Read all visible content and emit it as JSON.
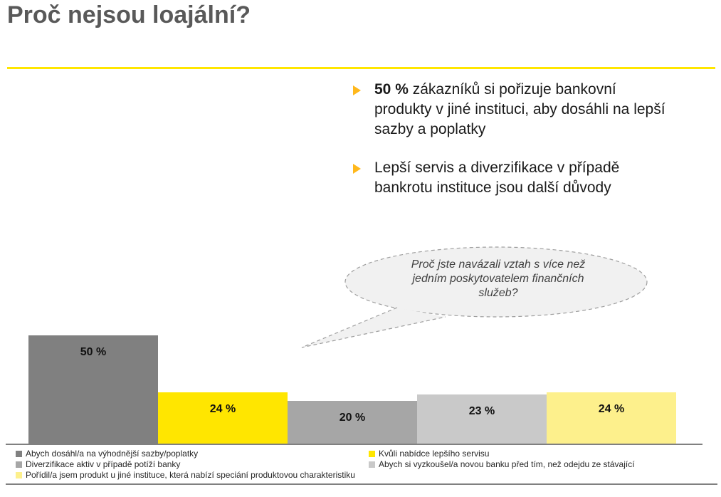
{
  "slide": {
    "title": "Proč nejsou loajální?",
    "bullets": [
      {
        "bold": "50 %",
        "text": " zákazníků si pořizuje bankovní produkty v jiné instituci, aby dosáhli na lepší sazby a poplatky"
      },
      {
        "bold": "",
        "text": "Lepší servis a diverzifikace v případě bankrotu instituce jsou další důvody"
      }
    ],
    "speech_bubble": {
      "text": "Proč jste navázali vztah s více než jedním poskytovatelem finančních služeb?",
      "lines": [
        "Proč jste navázali vztah s více než",
        "jedním poskytovatelem finančních",
        "služeb?"
      ]
    }
  },
  "chart_data": {
    "type": "bar",
    "title": "",
    "xlabel": "",
    "ylabel": "",
    "ylim": [
      0,
      55
    ],
    "grid": false,
    "legend_position": "bottom",
    "categories": [
      "Abych dosáhl/a na výhodnější sazby/poplatky",
      "Kvůli nabídce lepšího servisu",
      "Diverzifikace aktiv v případě potíží banky",
      "Abych si vyzkoušel/a novou banku před tím, než odejdu ze stávající",
      "Pořídil/a jsem produkt u jiné instituce, která nabízí speciání produktovou charakteristiku"
    ],
    "values": [
      50,
      24,
      20,
      23,
      24
    ],
    "labels": [
      "50 %",
      "24 %",
      "20 %",
      "23 %",
      "24 %"
    ],
    "colors": [
      "#808080",
      "#FFE600",
      "#A6A6A6",
      "#C9C9C9",
      "#FDF08C"
    ],
    "legend": [
      {
        "label": "Abych dosáhl/a na výhodnější sazby/poplatky",
        "color": "#808080"
      },
      {
        "label": "Kvůli nabídce lepšího servisu",
        "color": "#FFE600"
      },
      {
        "label": "Diverzifikace aktiv v případě potíží banky",
        "color": "#A6A6A6"
      },
      {
        "label": "Abych si vyzkoušel/a novou banku před tím, než odejdu ze stávající",
        "color": "#C9C9C9"
      },
      {
        "label": "Pořídil/a jsem produkt u jiné instituce, která nabízí speciání produktovou charakteristiku",
        "color": "#FDF08C"
      }
    ]
  },
  "colors": {
    "accent_yellow": "#FFE600",
    "bullet_arrow": "#FFB81C",
    "title_gray": "#595959",
    "axis_gray": "#808080",
    "bubble_fill": "#F1F1F1",
    "bubble_border": "#9E9E9E"
  }
}
